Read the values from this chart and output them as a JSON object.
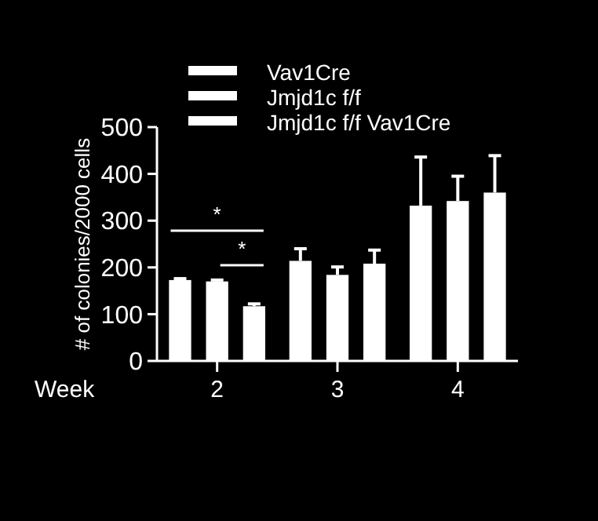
{
  "chart_data": {
    "type": "bar",
    "xlabel": "Week",
    "ylabel": "# of colonies/2000 cells",
    "categories": [
      "2",
      "3",
      "4"
    ],
    "series": [
      {
        "name": "Vav1Cre",
        "color": "#ffffff",
        "values": [
          173,
          214,
          332
        ],
        "errors": [
          [
            173,
            176
          ],
          [
            214,
            240
          ],
          [
            332,
            436
          ]
        ]
      },
      {
        "name": "Jmjd1c f/f",
        "color": "#ffffff",
        "values": [
          170,
          184,
          342
        ],
        "errors": [
          [
            170,
            173
          ],
          [
            184,
            201
          ],
          [
            342,
            395
          ]
        ]
      },
      {
        "name": "Jmjd1c f/f Vav1Cre",
        "color": "#ffffff",
        "values": [
          117,
          208,
          360
        ],
        "errors": [
          [
            117,
            122
          ],
          [
            208,
            237
          ],
          [
            360,
            439
          ]
        ]
      }
    ],
    "ylim": [
      0,
      500
    ],
    "yticks": [
      0,
      100,
      200,
      300,
      400,
      500
    ],
    "grid": false,
    "legend": "top",
    "annotations": [
      "*",
      "*"
    ]
  }
}
